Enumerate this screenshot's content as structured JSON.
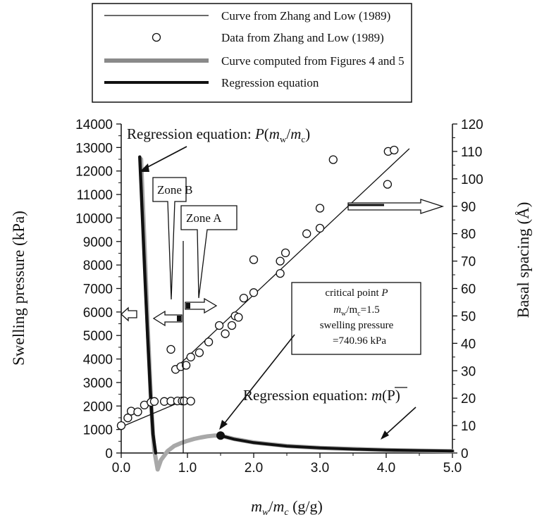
{
  "chart_data": {
    "type": "line",
    "title": "",
    "xlabel_var": "m",
    "xlabel_sub1": "w",
    "xlabel_sub2": "c",
    "xlabel_unit": " (g/g)",
    "ylabel_left": "Swelling pressure (kPa)",
    "ylabel_right": "Basal spacing (Å)",
    "xlim": [
      0,
      5
    ],
    "ylim_left": [
      0,
      14000
    ],
    "ylim_right": [
      0,
      120
    ],
    "x_ticks": [
      "0.0",
      "1.0",
      "2.0",
      "3.0",
      "4.0",
      "5.0"
    ],
    "y_left_ticks": [
      "0",
      "1000",
      "2000",
      "3000",
      "4000",
      "5000",
      "6000",
      "7000",
      "8000",
      "9000",
      "10000",
      "11000",
      "12000",
      "13000",
      "14000"
    ],
    "y_right_ticks": [
      "0",
      "10",
      "20",
      "30",
      "40",
      "50",
      "60",
      "70",
      "80",
      "90",
      "100",
      "110",
      "120"
    ],
    "legend_position": "top-center, above plot",
    "legend": [
      {
        "label": "Curve from Zhang and Low (1989)",
        "style": "thin-line"
      },
      {
        "label": "Data  from Zhang and Low (1989)",
        "style": "open-circle"
      },
      {
        "label": "Curve computed from Figures  4 and 5",
        "style": "thick-gray"
      },
      {
        "label": "Regression equation",
        "style": "thick-black"
      }
    ],
    "series": [
      {
        "name": "Curve from Zhang and Low (1989)",
        "axis": "right",
        "line_x": [
          0,
          0.95
        ],
        "line_y": [
          9.5,
          19.2
        ],
        "line_x2": [
          0.8,
          4.35
        ],
        "line_y2": [
          30.5,
          111
        ]
      },
      {
        "name": "Data  from Zhang and Low (1989)",
        "axis": "right",
        "x": [
          0.0,
          0.1,
          0.15,
          0.25,
          0.35,
          0.45,
          0.5,
          0.65,
          0.75,
          0.85,
          0.92,
          0.95,
          1.05,
          0.75,
          0.82,
          0.9,
          0.98,
          1.05,
          1.18,
          1.32,
          1.48,
          1.57,
          1.67,
          1.72,
          1.77,
          1.85,
          2.0,
          2.0,
          2.4,
          2.4,
          2.48,
          2.8,
          3.0,
          3.0,
          3.2,
          4.02,
          4.03,
          4.12
        ],
        "y": [
          10.0,
          12.8,
          15.3,
          15.0,
          17.5,
          18.5,
          18.8,
          18.8,
          18.9,
          19.0,
          19.0,
          19.0,
          18.9,
          37.8,
          30.5,
          31.5,
          32.0,
          35.0,
          36.6,
          40.5,
          46.5,
          43.5,
          46.5,
          50.0,
          49.5,
          56.5,
          58.5,
          70.5,
          65.5,
          70.0,
          73.0,
          80.0,
          82.0,
          89.3,
          107.0,
          98.0,
          110.0,
          110.5
        ]
      },
      {
        "name": "Curve computed from Figures  4 and 5",
        "axis": "left",
        "x": [
          0.3,
          0.35,
          0.4,
          0.45,
          0.48,
          0.5,
          0.55,
          0.6,
          0.7,
          0.8,
          0.9,
          1.0,
          1.1,
          1.2,
          1.3,
          1.4,
          1.5,
          1.7,
          2.0,
          2.5,
          3.0,
          3.5,
          4.0,
          4.5,
          5.0
        ],
        "y": [
          12500,
          9000,
          5400,
          2200,
          800,
          100,
          -700,
          -300,
          80,
          300,
          420,
          520,
          600,
          660,
          710,
          740,
          741,
          600,
          450,
          300,
          220,
          170,
          130,
          100,
          80
        ]
      },
      {
        "name": "Regression equation",
        "axis": "left",
        "x": [
          0.28,
          0.32,
          0.36,
          0.4,
          0.44,
          0.48,
          0.52,
          1.5,
          1.7,
          2.0,
          2.5,
          3.0,
          3.5,
          4.0,
          4.5,
          5.0
        ],
        "y": [
          12600,
          10000,
          7400,
          4900,
          2600,
          800,
          0,
          741,
          590,
          440,
          295,
          215,
          165,
          130,
          105,
          85
        ]
      }
    ],
    "annotations": {
      "reg_p_prefix": "Regression equation: ",
      "reg_p_func_open": "P(",
      "reg_p_m1": "m",
      "reg_p_sub1": "w",
      "reg_p_slash": "/",
      "reg_p_m2": "m",
      "reg_p_sub2": "c",
      "reg_p_close": ")",
      "reg_m_prefix": "Regression equation:  ",
      "reg_m_var": "m",
      "reg_m_rest": "(P)",
      "zone_a": "Zone A",
      "zone_b": "Zone B",
      "critical_line1_prefix": "critical point ",
      "critical_line1_var": "P",
      "critical_line2": "m",
      "critical_line2_sub1": "w",
      "critical_line2_mid": "/m",
      "critical_line2_sub2": "c",
      "critical_line2_val": "=1.5",
      "critical_line3": "swelling    pressure",
      "critical_line4": "=740.96 kPa",
      "critical_point": {
        "x": 1.5,
        "y": 741
      }
    }
  }
}
